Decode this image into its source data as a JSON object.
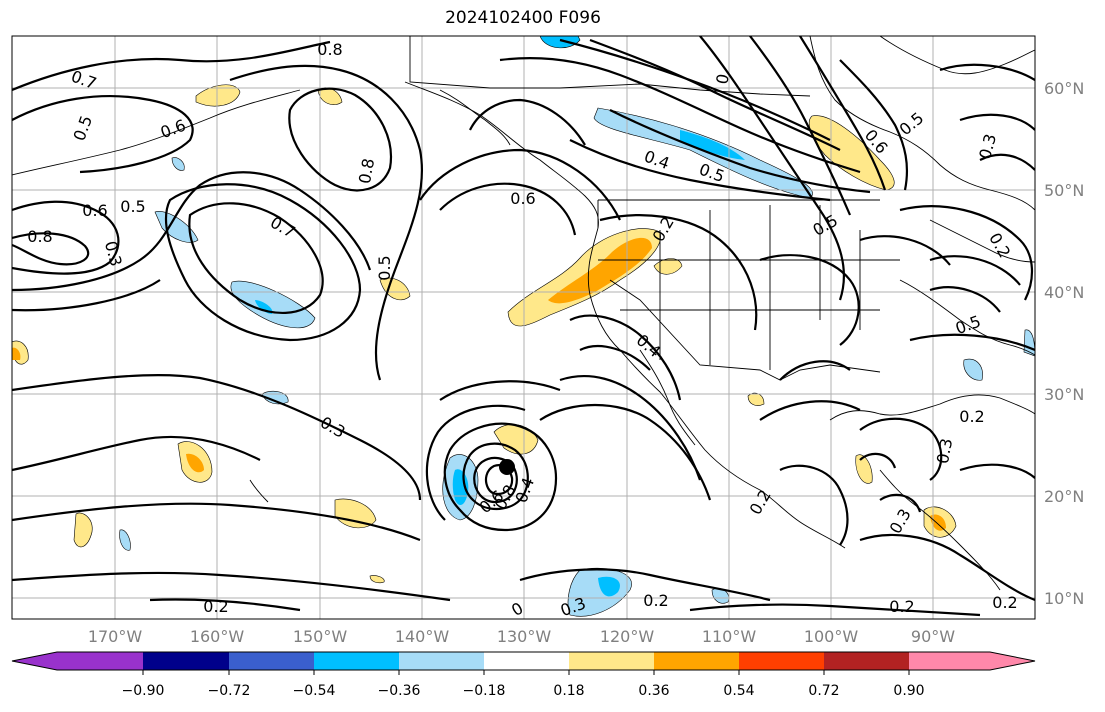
{
  "title": "2024102400 F096",
  "lat_labels": [
    "60°N",
    "50°N",
    "40°N",
    "30°N",
    "20°N",
    "10°N"
  ],
  "lon_labels": [
    "170°W",
    "160°W",
    "150°W",
    "140°W",
    "130°W",
    "120°W",
    "110°W",
    "100°W",
    "90°W"
  ],
  "contour_labels": [
    "0.8",
    "0.7",
    "0.5",
    "0.6",
    "0.5",
    "0.8",
    "0.7",
    "0.6",
    "0.8",
    "0.5",
    "0.6",
    "0.4",
    "0.5",
    "0.2",
    "0.5",
    "0.6",
    "0.5",
    "0.3",
    "0.5",
    "0.4",
    "0.3",
    "0.2",
    "0.3",
    "0.2",
    "0.3",
    "0.2",
    "0.2",
    "0.2",
    "0",
    "0.4",
    "0.8",
    "0.6",
    "0.3",
    "0.2",
    "0.3",
    "0.2",
    "0"
  ],
  "colorbar": {
    "tick_labels": [
      "−0.90",
      "−0.72",
      "−0.54",
      "−0.36",
      "−0.18",
      "0.18",
      "0.36",
      "0.54",
      "0.72",
      "0.90"
    ],
    "colors": [
      "#9932cc",
      "#00008b",
      "#3a5fcd",
      "#00bfff",
      "#a7dcf7",
      "#ffffff",
      "#ffe88a",
      "#ffa500",
      "#ff3f00",
      "#b22222",
      "#ff88aa",
      "#ff88aa"
    ]
  }
}
